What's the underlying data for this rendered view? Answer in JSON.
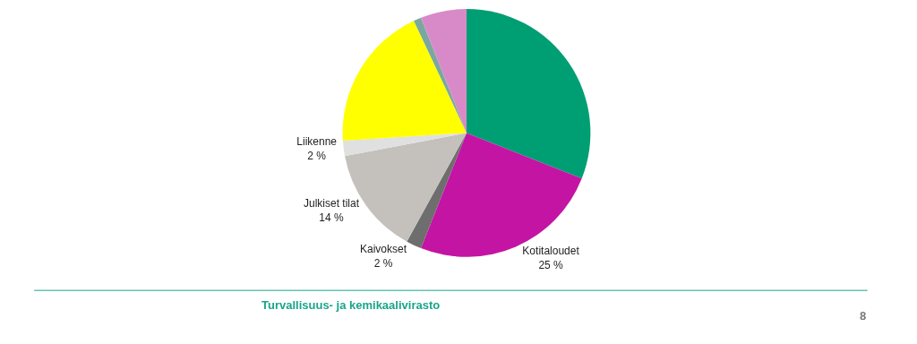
{
  "chart_data": {
    "type": "pie",
    "categories": [
      null,
      "Kotitaloudet",
      "Kaivokset",
      "Julkiset tilat",
      "Liikenne",
      null,
      null,
      null
    ],
    "values": [
      31,
      25,
      2,
      14,
      2,
      19,
      1,
      6
    ],
    "value_labels": [
      null,
      "25 %",
      "2 %",
      "14 %",
      "2 %",
      null,
      null,
      null
    ],
    "colors": [
      "#009e73",
      "#c414a4",
      "#6e6e6e",
      "#c4c0bc",
      "#e0e0e0",
      "#ffff00",
      "#7aa8a0",
      "#d88ac8"
    ],
    "annotations": [
      "Turvallisuus- ja kemikaalivirasto",
      "8"
    ],
    "legend": false
  }
}
